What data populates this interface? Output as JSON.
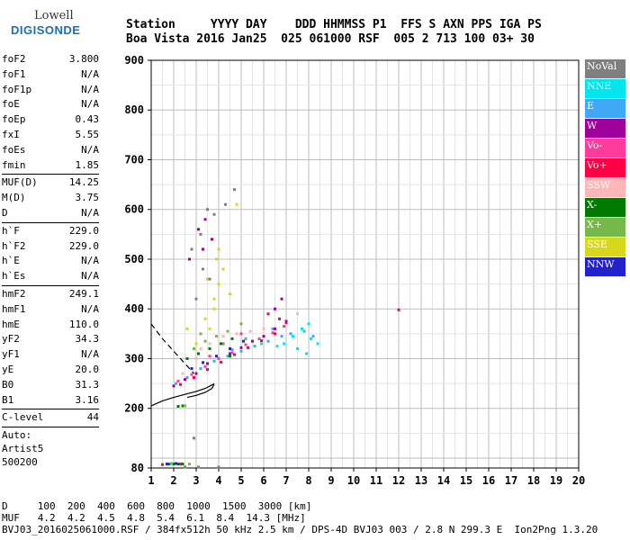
{
  "logo": {
    "line1": "Lowell",
    "line2": "DIGISONDE"
  },
  "header": {
    "labels": "Station     YYYY DAY    DDD HHMMSS P1  FFS S AXN PPS IGA PS",
    "values": "Boa Vista 2016 Jan25  025 061000 RSF  005 2 713 100 03+ 30"
  },
  "params": [
    [
      {
        "label": "foF2",
        "value": "3.800"
      },
      {
        "label": "foF1",
        "value": "N/A"
      },
      {
        "label": "foF1p",
        "value": "N/A"
      },
      {
        "label": "foE",
        "value": "N/A"
      },
      {
        "label": "foEp",
        "value": "0.43"
      },
      {
        "label": "fxI",
        "value": "5.55"
      },
      {
        "label": "foEs",
        "value": "N/A"
      },
      {
        "label": "fmin",
        "value": "1.85"
      }
    ],
    [
      {
        "label": "MUF(D)",
        "value": "14.25"
      },
      {
        "label": "M(D)",
        "value": "3.75"
      },
      {
        "label": "D",
        "value": "N/A"
      }
    ],
    [
      {
        "label": "h`F",
        "value": "229.0"
      },
      {
        "label": "h`F2",
        "value": "229.0"
      },
      {
        "label": "h`E",
        "value": "N/A"
      },
      {
        "label": "h`Es",
        "value": "N/A"
      }
    ],
    [
      {
        "label": "hmF2",
        "value": "249.1"
      },
      {
        "label": "hmF1",
        "value": "N/A"
      },
      {
        "label": "hmE",
        "value": "110.0"
      },
      {
        "label": "yF2",
        "value": "34.3"
      },
      {
        "label": "yF1",
        "value": "N/A"
      },
      {
        "label": "yE",
        "value": "20.0"
      },
      {
        "label": "B0",
        "value": "31.3"
      },
      {
        "label": "B1",
        "value": "3.16"
      }
    ],
    [
      {
        "label": "C-level",
        "value": "44"
      }
    ]
  ],
  "autoscaling": {
    "line1": "Auto:",
    "line2": "Artist5",
    "line3": "500200"
  },
  "legend": [
    {
      "name": "NoVal",
      "color": "#7f7f7f"
    },
    {
      "name": "NNE",
      "color": "#00e5ee"
    },
    {
      "name": "E",
      "color": "#3fa9f5"
    },
    {
      "name": "W",
      "color": "#a0009a"
    },
    {
      "name": "Vo-",
      "color": "#ff3c9c"
    },
    {
      "name": "Vo+",
      "color": "#ff0044"
    },
    {
      "name": "SSW",
      "color": "#ffb6b6"
    },
    {
      "name": "X-",
      "color": "#007a00"
    },
    {
      "name": "X+",
      "color": "#77b84a"
    },
    {
      "name": "SSE",
      "color": "#d7d71c"
    },
    {
      "name": "NNW",
      "color": "#2222cc"
    }
  ],
  "footer": {
    "d_line": "D     100  200  400  600  800  1000  1500  3000 [km]",
    "muf_line": "MUF   4.2  4.2  4.5  4.8  5.4  6.1  8.4  14.3 [MHz]",
    "file_line": "BVJ03_2016025061000.RSF / 384fx512h 50 kHz 2.5 km / DPS-4D BVJ03 003 / 2.8 N 299.3 E  Ion2Png 1.3.20"
  },
  "chart_data": {
    "type": "scatter",
    "title": "",
    "xlabel": "",
    "ylabel": "",
    "xlim": [
      1,
      20
    ],
    "ylim": [
      80,
      900
    ],
    "x_ticks": [
      1,
      2,
      3,
      4,
      5,
      6,
      7,
      8,
      9,
      10,
      11,
      12,
      13,
      14,
      15,
      16,
      17,
      18,
      19,
      20
    ],
    "y_ticks": [
      80,
      200,
      300,
      400,
      500,
      600,
      700,
      800,
      900
    ],
    "grid": true,
    "legend_position": "right",
    "series": [
      {
        "name": "E",
        "color": "#3fa9f5",
        "points": [
          [
            2.1,
            250
          ],
          [
            2.6,
            262
          ],
          [
            3.2,
            280
          ],
          [
            3.8,
            295
          ],
          [
            4.4,
            305
          ],
          [
            5.0,
            315
          ],
          [
            5.6,
            325
          ],
          [
            6.2,
            335
          ],
          [
            6.8,
            345
          ],
          [
            7.2,
            350
          ],
          [
            7.8,
            355
          ],
          [
            8.2,
            345
          ],
          [
            5.2,
            340
          ],
          [
            4.6,
            318
          ],
          [
            6.4,
            360
          ]
        ]
      },
      {
        "name": "NNE",
        "color": "#00e5ee",
        "points": [
          [
            6.9,
            330
          ],
          [
            7.3,
            345
          ],
          [
            7.7,
            360
          ],
          [
            8.1,
            340
          ],
          [
            8.4,
            330
          ],
          [
            7.5,
            320
          ],
          [
            6.6,
            325
          ],
          [
            8.0,
            370
          ],
          [
            7.9,
            310
          ],
          [
            5.9,
            330
          ]
        ]
      },
      {
        "name": "W",
        "color": "#a0009a",
        "points": [
          [
            2.0,
            245
          ],
          [
            2.5,
            258
          ],
          [
            3.0,
            270
          ],
          [
            3.5,
            290
          ],
          [
            4.0,
            300
          ],
          [
            4.5,
            310
          ],
          [
            5.0,
            322
          ],
          [
            5.5,
            335
          ],
          [
            6.0,
            345
          ],
          [
            6.5,
            360
          ],
          [
            7.0,
            375
          ],
          [
            6.8,
            420
          ],
          [
            6.5,
            400
          ],
          [
            3.1,
            560
          ],
          [
            3.4,
            580
          ],
          [
            3.7,
            540
          ],
          [
            2.7,
            500
          ],
          [
            3.3,
            520
          ]
        ]
      },
      {
        "name": "Vo-",
        "color": "#ff3c9c",
        "points": [
          [
            2.2,
            255
          ],
          [
            2.8,
            268
          ],
          [
            3.4,
            284
          ],
          [
            4.0,
            300
          ],
          [
            4.6,
            312
          ],
          [
            5.2,
            328
          ],
          [
            5.8,
            340
          ],
          [
            6.4,
            352
          ],
          [
            6.9,
            365
          ],
          [
            4.2,
            330
          ],
          [
            5.0,
            350
          ],
          [
            3.6,
            305
          ]
        ]
      },
      {
        "name": "Vo+",
        "color": "#ff0044",
        "points": [
          [
            2.3,
            248
          ],
          [
            2.9,
            262
          ],
          [
            3.5,
            278
          ],
          [
            4.1,
            293
          ],
          [
            4.7,
            308
          ],
          [
            5.3,
            322
          ],
          [
            5.9,
            336
          ],
          [
            6.5,
            350
          ],
          [
            7.0,
            372
          ],
          [
            12.0,
            398
          ],
          [
            6.7,
            380
          ],
          [
            6.2,
            390
          ],
          [
            1.5,
            87
          ],
          [
            2.3,
            88
          ]
        ]
      },
      {
        "name": "SSW",
        "color": "#ffb6b6",
        "points": [
          [
            2.4,
            270
          ],
          [
            3.0,
            300
          ],
          [
            3.6,
            330
          ],
          [
            4.2,
            345
          ],
          [
            4.8,
            350
          ],
          [
            5.4,
            355
          ],
          [
            6.0,
            360
          ],
          [
            7.5,
            390
          ],
          [
            3.2,
            320
          ]
        ]
      },
      {
        "name": "X-",
        "color": "#007a00",
        "points": [
          [
            2.6,
            300
          ],
          [
            3.1,
            310
          ],
          [
            3.6,
            320
          ],
          [
            4.1,
            330
          ],
          [
            4.6,
            340
          ],
          [
            2.2,
            204
          ],
          [
            2.4,
            205
          ],
          [
            1.8,
            88
          ],
          [
            2.0,
            88
          ],
          [
            2.2,
            88
          ],
          [
            2.4,
            88
          ],
          [
            4.5,
            305
          ]
        ]
      },
      {
        "name": "X+",
        "color": "#77b84a",
        "points": [
          [
            2.9,
            320
          ],
          [
            3.4,
            335
          ],
          [
            3.9,
            345
          ],
          [
            4.4,
            355
          ],
          [
            5.0,
            370
          ],
          [
            3.2,
            350
          ],
          [
            2.5,
            205
          ],
          [
            2.7,
            88
          ],
          [
            1.9,
            89
          ]
        ]
      },
      {
        "name": "SSE",
        "color": "#d7d71c",
        "points": [
          [
            3.0,
            330
          ],
          [
            3.4,
            380
          ],
          [
            3.8,
            420
          ],
          [
            4.0,
            450
          ],
          [
            4.2,
            480
          ],
          [
            4.0,
            520
          ],
          [
            3.8,
            400
          ],
          [
            3.6,
            360
          ],
          [
            4.5,
            430
          ],
          [
            3.5,
            460
          ],
          [
            2.6,
            360
          ],
          [
            3.9,
            500
          ],
          [
            4.8,
            610
          ]
        ]
      },
      {
        "name": "NNW",
        "color": "#2222cc",
        "points": [
          [
            2.8,
            280
          ],
          [
            3.3,
            292
          ],
          [
            3.9,
            305
          ],
          [
            4.5,
            320
          ],
          [
            5.1,
            335
          ],
          [
            1.7,
            88
          ],
          [
            2.1,
            89
          ]
        ]
      },
      {
        "name": "NoVal",
        "color": "#7f7f7f",
        "points": [
          [
            3.0,
            420
          ],
          [
            3.3,
            480
          ],
          [
            3.6,
            460
          ],
          [
            3.2,
            550
          ],
          [
            3.5,
            600
          ],
          [
            2.8,
            520
          ],
          [
            4.3,
            610
          ],
          [
            4.7,
            640
          ],
          [
            3.8,
            590
          ],
          [
            2.9,
            140
          ],
          [
            3.1,
            82
          ],
          [
            4.0,
            82
          ],
          [
            2.5,
            82
          ]
        ]
      }
    ],
    "profile_curve": [
      [
        1.0,
        205
      ],
      [
        1.5,
        215
      ],
      [
        2.0,
        222
      ],
      [
        2.5,
        228
      ],
      [
        3.0,
        234
      ],
      [
        3.4,
        240
      ],
      [
        3.7,
        247
      ],
      [
        3.8,
        249
      ]
    ],
    "profile_lower": [
      [
        3.8,
        249
      ],
      [
        3.7,
        240
      ],
      [
        3.4,
        232
      ],
      [
        3.0,
        226
      ],
      [
        2.6,
        222
      ]
    ],
    "profile_dashed": [
      [
        1.0,
        370
      ],
      [
        1.5,
        340
      ],
      [
        2.0,
        315
      ],
      [
        2.5,
        290
      ],
      [
        2.9,
        270
      ]
    ]
  }
}
